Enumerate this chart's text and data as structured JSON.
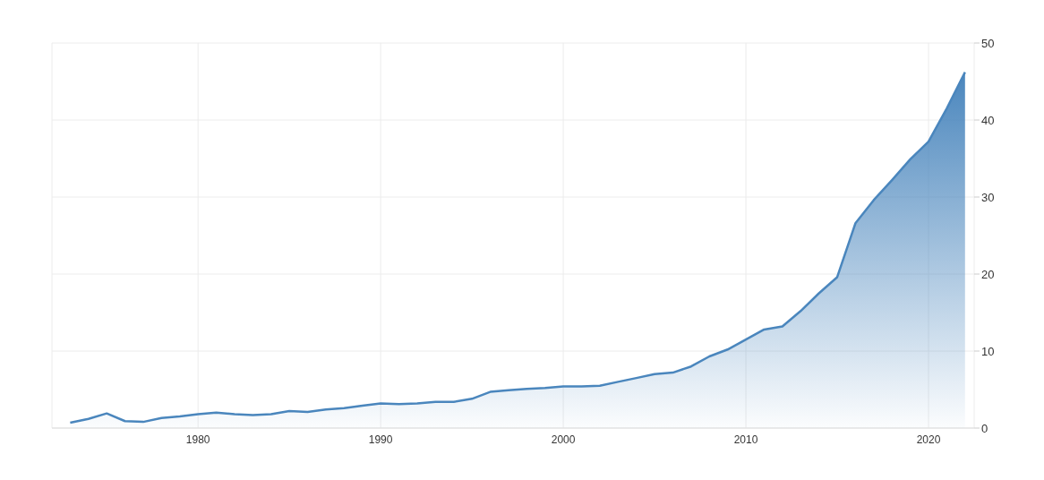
{
  "chart_data": {
    "type": "area",
    "x": [
      1973,
      1974,
      1975,
      1976,
      1977,
      1978,
      1979,
      1980,
      1981,
      1982,
      1983,
      1984,
      1985,
      1986,
      1987,
      1988,
      1989,
      1990,
      1991,
      1992,
      1993,
      1994,
      1995,
      1996,
      1997,
      1998,
      1999,
      2000,
      2001,
      2002,
      2003,
      2004,
      2005,
      2006,
      2007,
      2008,
      2009,
      2010,
      2011,
      2012,
      2013,
      2014,
      2015,
      2016,
      2017,
      2018,
      2019,
      2020,
      2021,
      2022
    ],
    "series": [
      {
        "color": "#4a86bd",
        "values": [
          0.7,
          1.2,
          1.9,
          0.9,
          0.8,
          1.3,
          1.5,
          1.8,
          2.0,
          1.8,
          1.7,
          1.8,
          2.2,
          2.1,
          2.4,
          2.6,
          2.9,
          3.2,
          3.1,
          3.2,
          3.4,
          3.4,
          3.8,
          4.7,
          4.9,
          5.1,
          5.2,
          5.4,
          5.4,
          5.5,
          6.0,
          6.5,
          7.0,
          7.2,
          8.0,
          9.3,
          10.2,
          11.5,
          12.8,
          13.2,
          15.2,
          17.5,
          19.6,
          26.6,
          29.6,
          32.2,
          34.9,
          37.2,
          41.5,
          46.2
        ]
      }
    ],
    "xlim": [
      1972,
      2022.5
    ],
    "xticks": [
      1980,
      1990,
      2000,
      2010,
      2020
    ],
    "ylim": [
      0,
      50
    ],
    "yticks": [
      0,
      10,
      20,
      30,
      40,
      50
    ],
    "grid": true
  }
}
